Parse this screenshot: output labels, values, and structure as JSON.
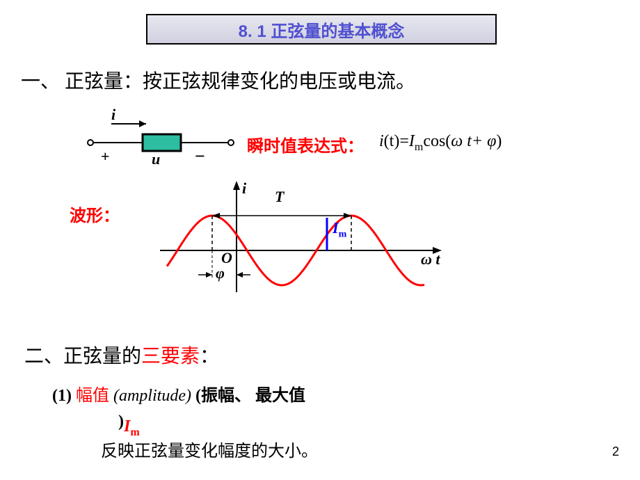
{
  "title": "8. 1   正弦量的基本概念",
  "heading1_prefix": "一、 ",
  "heading1_text": "正弦量：按正弦规律变化的电压或电流。",
  "circuit": {
    "i_label": "i",
    "u_label": "u",
    "plus": "+",
    "minus": "−",
    "box_fill": "#2dbda0",
    "line_color": "#000000"
  },
  "formula_label": "瞬时值表达式：",
  "formula": {
    "lhs": "i",
    "lhs_arg": "(t)=",
    "Im_I": "I",
    "Im_m": "m",
    "cos": "cos(",
    "omega": "ω",
    "t_plus": " t+ ",
    "phi": "φ",
    "close": ")"
  },
  "waveform_label": "波形：",
  "waveform": {
    "axis_color": "#000000",
    "curve_color": "#ff0000",
    "dashed_color": "#000000",
    "im_line_color": "#0000ff",
    "i_label": "i",
    "T_label": "T",
    "Im_I": "I",
    "Im_m": "m",
    "O_label": "O",
    "phi_label": "φ",
    "omega_t": "ω t",
    "xlim": [
      -40,
      380
    ],
    "ylim": [
      -60,
      60
    ],
    "amplitude": 50,
    "phase_shift": -35,
    "period": 200
  },
  "heading2_prefix": "二、正弦量的",
  "heading2_red": "三要素",
  "heading2_suffix": "：",
  "bullet1_num": "(1) ",
  "bullet1_red": "幅值  ",
  "bullet1_ital": "(amplitude) ",
  "bullet1_rest": "(振幅、 最大值",
  "bullet1_close": ")",
  "im_red_I": "I",
  "im_red_m": "m",
  "desc_text": "反映正弦量变化幅度的大小。",
  "page_number": "2",
  "colors": {
    "title_text": "#5050d0",
    "red": "#ff0000",
    "blue": "#0000ff",
    "black": "#000000"
  }
}
